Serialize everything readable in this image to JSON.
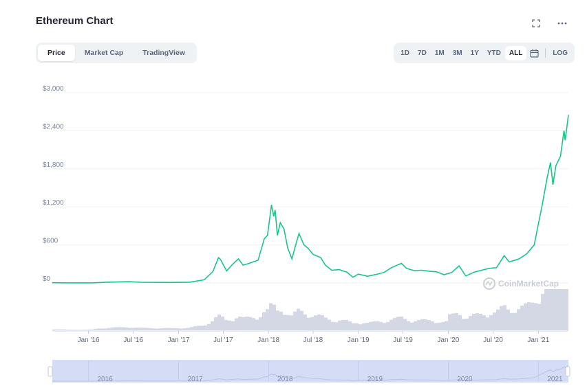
{
  "header": {
    "title": "Ethereum Chart"
  },
  "icons": {
    "fullscreen": "fullscreen-icon",
    "more": "more-icon",
    "calendar": "calendar-icon",
    "watermark": "coinmarketcap-logo-icon"
  },
  "tabs": [
    {
      "label": "Price",
      "active": true
    },
    {
      "label": "Market Cap",
      "active": false
    },
    {
      "label": "TradingView",
      "active": false
    }
  ],
  "ranges": [
    {
      "label": "1D",
      "active": false
    },
    {
      "label": "7D",
      "active": false
    },
    {
      "label": "1M",
      "active": false
    },
    {
      "label": "3M",
      "active": false
    },
    {
      "label": "1Y",
      "active": false
    },
    {
      "label": "YTD",
      "active": false
    },
    {
      "label": "ALL",
      "active": true
    }
  ],
  "log_label": "LOG",
  "watermark": "CoinMarketCap",
  "colors": {
    "line": "#16c784",
    "volume": "#d3d8e4",
    "navigator": "#d5dcf5",
    "grid": "#eff2f5"
  },
  "chart_data": {
    "type": "line",
    "title": "Ethereum Chart",
    "x_unit": "date",
    "ylim": [
      0,
      3000
    ],
    "yticks": [
      "$0",
      "$600",
      "$1,200",
      "$1,800",
      "$2,400",
      "$3,000"
    ],
    "ytick_values": [
      0,
      600,
      1200,
      1800,
      2400,
      3000
    ],
    "xticks": [
      "Jan '16",
      "Jul '16",
      "Jan '17",
      "Jul '17",
      "Jan '18",
      "Jul '18",
      "Jan '19",
      "Jul '19",
      "Jan '20",
      "Jul '20",
      "Jan '21"
    ],
    "xtick_dates": [
      "2016-01-01",
      "2016-07-01",
      "2017-01-01",
      "2017-07-01",
      "2018-01-01",
      "2018-07-01",
      "2019-01-01",
      "2019-07-01",
      "2020-01-01",
      "2020-07-01",
      "2021-01-01"
    ],
    "navigator_labels": [
      "2016",
      "2017",
      "2018",
      "2019",
      "2020",
      "2021"
    ],
    "navigator_dates": [
      "2016-01-01",
      "2017-01-01",
      "2018-01-01",
      "2019-01-01",
      "2020-01-01",
      "2021-01-01"
    ],
    "grid": true,
    "series": [
      {
        "values": [
          [
            "2015-08-07",
            3
          ],
          [
            "2015-10-15",
            0.6
          ],
          [
            "2016-01-15",
            1
          ],
          [
            "2016-03-15",
            12
          ],
          [
            "2016-06-15",
            20
          ],
          [
            "2016-08-01",
            11
          ],
          [
            "2016-12-01",
            8
          ],
          [
            "2017-02-15",
            12
          ],
          [
            "2017-04-15",
            50
          ],
          [
            "2017-05-20",
            180
          ],
          [
            "2017-06-12",
            400
          ],
          [
            "2017-06-20",
            370
          ],
          [
            "2017-07-15",
            190
          ],
          [
            "2017-08-10",
            300
          ],
          [
            "2017-09-01",
            380
          ],
          [
            "2017-09-20",
            280
          ],
          [
            "2017-10-15",
            310
          ],
          [
            "2017-11-20",
            360
          ],
          [
            "2017-12-15",
            700
          ],
          [
            "2017-12-28",
            750
          ],
          [
            "2018-01-13",
            1230
          ],
          [
            "2018-01-22",
            1050
          ],
          [
            "2018-01-28",
            1150
          ],
          [
            "2018-02-06",
            750
          ],
          [
            "2018-02-18",
            950
          ],
          [
            "2018-03-05",
            850
          ],
          [
            "2018-03-20",
            550
          ],
          [
            "2018-04-06",
            380
          ],
          [
            "2018-04-25",
            650
          ],
          [
            "2018-05-05",
            780
          ],
          [
            "2018-05-25",
            600
          ],
          [
            "2018-06-10",
            550
          ],
          [
            "2018-07-01",
            450
          ],
          [
            "2018-08-01",
            400
          ],
          [
            "2018-08-20",
            280
          ],
          [
            "2018-09-15",
            200
          ],
          [
            "2018-10-15",
            210
          ],
          [
            "2018-11-15",
            170
          ],
          [
            "2018-12-10",
            90
          ],
          [
            "2019-01-01",
            140
          ],
          [
            "2019-02-07",
            105
          ],
          [
            "2019-03-15",
            135
          ],
          [
            "2019-04-15",
            165
          ],
          [
            "2019-05-15",
            240
          ],
          [
            "2019-06-25",
            310
          ],
          [
            "2019-07-15",
            230
          ],
          [
            "2019-08-15",
            195
          ],
          [
            "2019-09-15",
            200
          ],
          [
            "2019-10-15",
            185
          ],
          [
            "2019-11-15",
            175
          ],
          [
            "2019-12-15",
            130
          ],
          [
            "2020-01-15",
            165
          ],
          [
            "2020-02-14",
            270
          ],
          [
            "2020-03-12",
            110
          ],
          [
            "2020-04-15",
            170
          ],
          [
            "2020-05-15",
            200
          ],
          [
            "2020-06-15",
            230
          ],
          [
            "2020-07-15",
            240
          ],
          [
            "2020-08-15",
            430
          ],
          [
            "2020-09-05",
            330
          ],
          [
            "2020-10-15",
            380
          ],
          [
            "2020-11-15",
            460
          ],
          [
            "2020-12-15",
            600
          ],
          [
            "2021-01-03",
            970
          ],
          [
            "2021-01-15",
            1200
          ],
          [
            "2021-02-05",
            1650
          ],
          [
            "2021-02-19",
            1900
          ],
          [
            "2021-03-01",
            1550
          ],
          [
            "2021-03-13",
            1850
          ],
          [
            "2021-04-01",
            2000
          ],
          [
            "2021-04-15",
            2400
          ],
          [
            "2021-04-20",
            2250
          ],
          [
            "2021-05-03",
            2650
          ]
        ]
      }
    ]
  }
}
